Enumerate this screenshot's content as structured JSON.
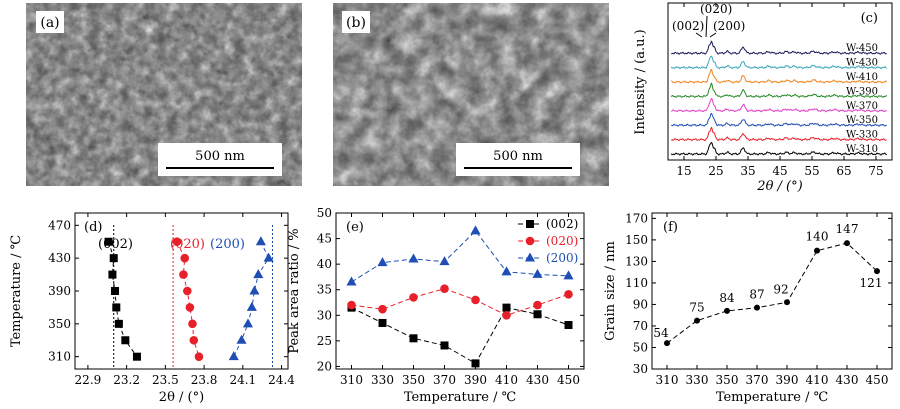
{
  "figure": {
    "panel_labels": [
      "(a)",
      "(b)",
      "(c)",
      "(d)",
      "(e)",
      "(f)"
    ],
    "scale_bar_a": "500 nm",
    "scale_bar_b": "500 nm"
  },
  "chart_data": [
    {
      "id": "c",
      "type": "line",
      "xlabel": "2θ / (°)",
      "ylabel": "Intensity / (a.u.)",
      "xlim": [
        10,
        80
      ],
      "xticks": [
        15,
        25,
        35,
        45,
        55,
        65,
        75
      ],
      "peak_labels": [
        "(002)",
        "(020)",
        "(200)"
      ],
      "series": [
        {
          "name": "W-310",
          "color": "#000000"
        },
        {
          "name": "W-330",
          "color": "#e8202a"
        },
        {
          "name": "W-350",
          "color": "#1f4fb4"
        },
        {
          "name": "W-370",
          "color": "#e042c8"
        },
        {
          "name": "W-390",
          "color": "#2a8a2a"
        },
        {
          "name": "W-410",
          "color": "#f0861f"
        },
        {
          "name": "W-430",
          "color": "#3aa6b8"
        },
        {
          "name": "W-450",
          "color": "#1a1a5a"
        }
      ]
    },
    {
      "id": "d",
      "type": "scatter",
      "xlabel": "2θ / (°)",
      "ylabel": "Temperature / ℃",
      "xlim": [
        22.8,
        24.45
      ],
      "ylim": [
        295,
        485
      ],
      "xticks": [
        22.9,
        23.2,
        23.5,
        23.8,
        24.1,
        24.4
      ],
      "yticks": [
        310,
        350,
        390,
        430,
        470
      ],
      "legend": [
        "(002)",
        "(020)",
        "(200)"
      ],
      "temps": [
        450,
        430,
        410,
        390,
        370,
        350,
        330,
        310
      ],
      "series": [
        {
          "name": "(002)",
          "color": "#000000",
          "marker": "square",
          "x": [
            23.06,
            23.1,
            23.09,
            23.11,
            23.12,
            23.14,
            23.19,
            23.28
          ],
          "ref": 23.1
        },
        {
          "name": "(020)",
          "color": "#e8202a",
          "marker": "circle",
          "x": [
            23.59,
            23.65,
            23.64,
            23.67,
            23.69,
            23.71,
            23.72,
            23.76
          ],
          "ref": 23.56
        },
        {
          "name": "(200)",
          "color": "#1f4fb4",
          "marker": "triangle",
          "x": [
            24.24,
            24.3,
            24.22,
            24.19,
            24.17,
            24.14,
            24.09,
            24.03
          ],
          "ref": 24.33
        }
      ]
    },
    {
      "id": "e",
      "type": "line",
      "xlabel": "Temperature / ℃",
      "ylabel": "Peak area ratio / %",
      "xlim": [
        300,
        460
      ],
      "ylim": [
        19.5,
        50
      ],
      "xticks": [
        310,
        330,
        350,
        370,
        390,
        410,
        430,
        450
      ],
      "yticks": [
        20,
        25,
        30,
        35,
        40,
        45,
        50
      ],
      "x": [
        310,
        330,
        350,
        370,
        390,
        410,
        430,
        450
      ],
      "series": [
        {
          "name": "(002)",
          "color": "#000000",
          "marker": "square",
          "values": [
            31.5,
            28.5,
            25.5,
            24.1,
            20.6,
            31.5,
            30.2,
            28.1
          ]
        },
        {
          "name": "(020)",
          "color": "#e8202a",
          "marker": "circle",
          "values": [
            32.0,
            31.2,
            33.5,
            35.2,
            33.0,
            30.0,
            32.0,
            34.1
          ]
        },
        {
          "name": "(200)",
          "color": "#1f4fb4",
          "marker": "triangle",
          "values": [
            36.5,
            40.3,
            41.0,
            40.5,
            46.5,
            38.5,
            38.0,
            37.7
          ]
        }
      ]
    },
    {
      "id": "f",
      "type": "line",
      "xlabel": "Temperature / ℃",
      "ylabel": "Grain size / nm",
      "xlim": [
        300,
        460
      ],
      "ylim": [
        30,
        175
      ],
      "xticks": [
        310,
        330,
        350,
        370,
        390,
        410,
        430,
        450
      ],
      "yticks": [
        30,
        50,
        70,
        90,
        110,
        130,
        150,
        170
      ],
      "x": [
        310,
        330,
        350,
        370,
        390,
        410,
        430,
        450
      ],
      "values": [
        54,
        75,
        84,
        87,
        92,
        140,
        147,
        121
      ],
      "labels": [
        "54",
        "75",
        "84",
        "87",
        "92",
        "140",
        "147",
        "121"
      ]
    }
  ]
}
